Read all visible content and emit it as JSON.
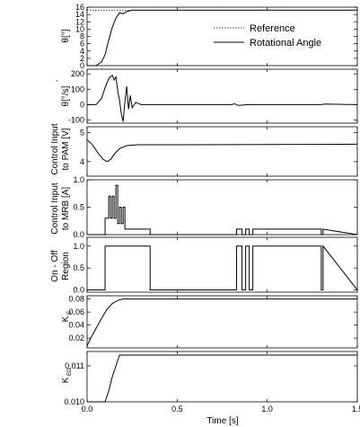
{
  "chart_data": [
    {
      "type": "line",
      "ylabel": "θ [°]",
      "ylim": [
        0,
        16
      ],
      "yticks": [
        0,
        2,
        4,
        6,
        8,
        10,
        12,
        14,
        16
      ],
      "legend": {
        "placement": "bottom-right",
        "entries": [
          "Reference",
          "Rotational Angle"
        ]
      },
      "series": [
        {
          "name": "Reference",
          "style": "dashed",
          "x": [
            0,
            1.5
          ],
          "y": [
            15.2,
            15.2
          ]
        },
        {
          "name": "Rotational Angle",
          "x": [
            0,
            0.05,
            0.08,
            0.1,
            0.12,
            0.14,
            0.16,
            0.18,
            0.2,
            0.22,
            0.25,
            0.3,
            1.5
          ],
          "y": [
            0,
            0,
            1,
            3,
            7,
            10.5,
            13,
            14.5,
            14.2,
            14.8,
            15.2,
            15.2,
            15.2
          ]
        }
      ]
    },
    {
      "type": "line",
      "ylabel": "θ̇ [°/s]",
      "ylim": [
        -120,
        230
      ],
      "yticks": [
        -100,
        0,
        100,
        200
      ],
      "series": [
        {
          "x": [
            0,
            0.05,
            0.08,
            0.1,
            0.12,
            0.14,
            0.15,
            0.16,
            0.17,
            0.18,
            0.19,
            0.2,
            0.21,
            0.22,
            0.23,
            0.24,
            0.25,
            0.27,
            0.3,
            0.35,
            0.8,
            0.82,
            0.84,
            0.9,
            1.3,
            1.32,
            1.5
          ],
          "y": [
            0,
            0,
            40,
            110,
            170,
            190,
            160,
            180,
            90,
            30,
            -60,
            -110,
            20,
            120,
            -30,
            60,
            -20,
            15,
            0,
            0,
            0,
            5,
            -5,
            0,
            0,
            4,
            0
          ]
        }
      ]
    },
    {
      "type": "line",
      "ylabel": "Control Input to PAM [V]",
      "ylim": [
        3.5,
        5.2
      ],
      "yticks": [
        4,
        5
      ],
      "series": [
        {
          "x": [
            0,
            0.03,
            0.06,
            0.09,
            0.11,
            0.13,
            0.15,
            0.18,
            0.22,
            0.28,
            0.35,
            0.5,
            1.0,
            1.5
          ],
          "y": [
            4.75,
            4.58,
            4.3,
            4.08,
            4.0,
            4.07,
            4.25,
            4.45,
            4.55,
            4.58,
            4.58,
            4.58,
            4.59,
            4.6
          ]
        }
      ]
    },
    {
      "type": "line",
      "ylabel": "Control Input to MRB [A]",
      "ylim": [
        0,
        1.0
      ],
      "yticks": [
        0,
        0.5,
        1.0
      ],
      "series": [
        {
          "x": [
            0,
            0.1,
            0.1,
            0.12,
            0.12,
            0.13,
            0.13,
            0.14,
            0.14,
            0.15,
            0.15,
            0.16,
            0.16,
            0.17,
            0.17,
            0.18,
            0.18,
            0.19,
            0.19,
            0.2,
            0.2,
            0.21,
            0.21,
            0.35,
            0.35,
            0.83,
            0.83,
            0.86,
            0.86,
            0.88,
            0.88,
            0.9,
            0.9,
            0.92,
            0.92,
            1.3,
            1.3,
            1.31,
            1.31,
            1.5
          ],
          "y": [
            0,
            0,
            0.3,
            0.3,
            0.7,
            0.7,
            0.3,
            0.3,
            0.7,
            0.7,
            0.3,
            0.3,
            0.9,
            0.9,
            0.2,
            0.2,
            0.5,
            0.5,
            0.2,
            0.2,
            0.5,
            0.5,
            0.1,
            0.1,
            0,
            0,
            0.1,
            0.1,
            0,
            0,
            0.1,
            0.1,
            0,
            0,
            0.1,
            0.1,
            0,
            0,
            0.1,
            0
          ]
        }
      ]
    },
    {
      "type": "line",
      "ylabel": "On - Off Region",
      "ylim": [
        -0.05,
        1.2
      ],
      "yticks": [
        0,
        0.5,
        1.0
      ],
      "series": [
        {
          "x": [
            0,
            0.1,
            0.1,
            0.35,
            0.35,
            0.83,
            0.83,
            0.86,
            0.86,
            0.88,
            0.88,
            0.9,
            0.9,
            0.92,
            0.92,
            1.3,
            1.3,
            1.31,
            1.31,
            1.5
          ],
          "y": [
            0,
            0,
            1,
            1,
            0,
            0,
            1,
            1,
            0,
            0,
            1,
            1,
            0,
            0,
            1,
            1,
            0,
            0,
            1,
            0
          ]
        }
      ]
    },
    {
      "type": "line",
      "ylabel": "K_E",
      "ylim": [
        0.005,
        0.085
      ],
      "yticks": [
        0.02,
        0.04,
        0.06,
        0.08
      ],
      "series": [
        {
          "x": [
            0,
            0.02,
            0.05,
            0.08,
            0.11,
            0.14,
            0.17,
            0.2,
            0.25,
            0.3,
            1.5
          ],
          "y": [
            0.008,
            0.02,
            0.035,
            0.05,
            0.064,
            0.073,
            0.078,
            0.08,
            0.08,
            0.08,
            0.08
          ]
        }
      ]
    },
    {
      "type": "line",
      "ylabel": "K_ED",
      "xlabel": "Time [s]",
      "xlim": [
        0,
        1.5
      ],
      "xticks": [
        0.0,
        0.5,
        1.0,
        1.5
      ],
      "ylim": [
        0.01,
        0.0114
      ],
      "yticks": [
        0.01,
        0.011
      ],
      "series": [
        {
          "x": [
            0,
            0.1,
            0.12,
            0.14,
            0.16,
            0.18,
            0.2,
            1.5
          ],
          "y": [
            0.01,
            0.01,
            0.0103,
            0.0107,
            0.011,
            0.0113,
            0.0113,
            0.0113
          ]
        }
      ]
    }
  ],
  "labels": {
    "ylabel_theta": "θ[°]",
    "ylabel_thetadot": "θ[°/s]",
    "thetadot_dot": "·",
    "ylabel_pam_1": "Control Input",
    "ylabel_pam_2": "to PAM [V]",
    "ylabel_mrb_1": "Control Input",
    "ylabel_mrb_2": "to MRB [A]",
    "ylabel_onoff_1": "On - Off",
    "ylabel_onoff_2": "Region",
    "ylabel_ke": "K",
    "ylabel_ke_sub": "E",
    "ylabel_ked": "K",
    "ylabel_ked_sub": "ED",
    "xlabel": "Time [s]",
    "legend_reference": "Reference",
    "legend_rotational": "Rotational Angle"
  },
  "tick_labels": {
    "p0": [
      "0",
      "2",
      "4",
      "6",
      "8",
      "10",
      "12",
      "14",
      "16"
    ],
    "p1": [
      "-100",
      "0",
      "100",
      "200"
    ],
    "p2": [
      "4",
      "5"
    ],
    "p3": [
      "0.0",
      "0.5",
      "1.0"
    ],
    "p4": [
      "0.0",
      "0.5",
      "1.0"
    ],
    "p5": [
      "0.02",
      "0.04",
      "0.06",
      "0.08"
    ],
    "p6": [
      "0.010",
      "0.011"
    ],
    "x": [
      "0.0",
      "0.5",
      "1.0",
      "1.5"
    ]
  }
}
